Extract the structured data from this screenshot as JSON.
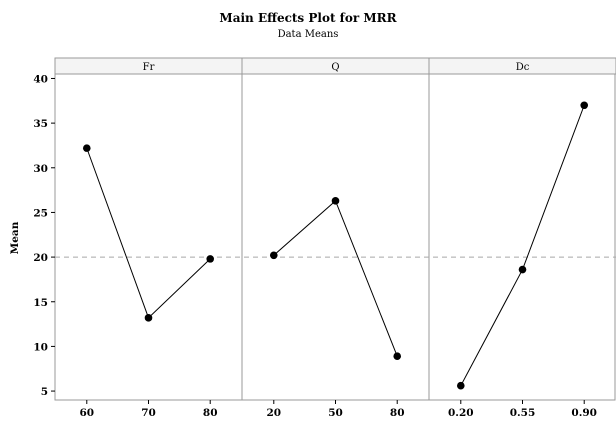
{
  "chart_data": {
    "type": "line",
    "title": "Main Effects Plot for MRR",
    "subtitle": "Data Means",
    "ylabel": "Mean",
    "ylim": [
      4,
      40.5
    ],
    "yticks": [
      5,
      10,
      15,
      20,
      25,
      30,
      35,
      40
    ],
    "reference_line": 20,
    "grid": false,
    "panels": [
      {
        "name": "Fr",
        "categories": [
          "60",
          "70",
          "80"
        ],
        "values": [
          32.2,
          13.2,
          19.8
        ]
      },
      {
        "name": "Q",
        "categories": [
          "20",
          "50",
          "80"
        ],
        "values": [
          20.2,
          26.3,
          8.9
        ]
      },
      {
        "name": "Dc",
        "categories": [
          "0.20",
          "0.55",
          "0.90"
        ],
        "values": [
          5.6,
          18.6,
          37.0
        ]
      }
    ]
  }
}
